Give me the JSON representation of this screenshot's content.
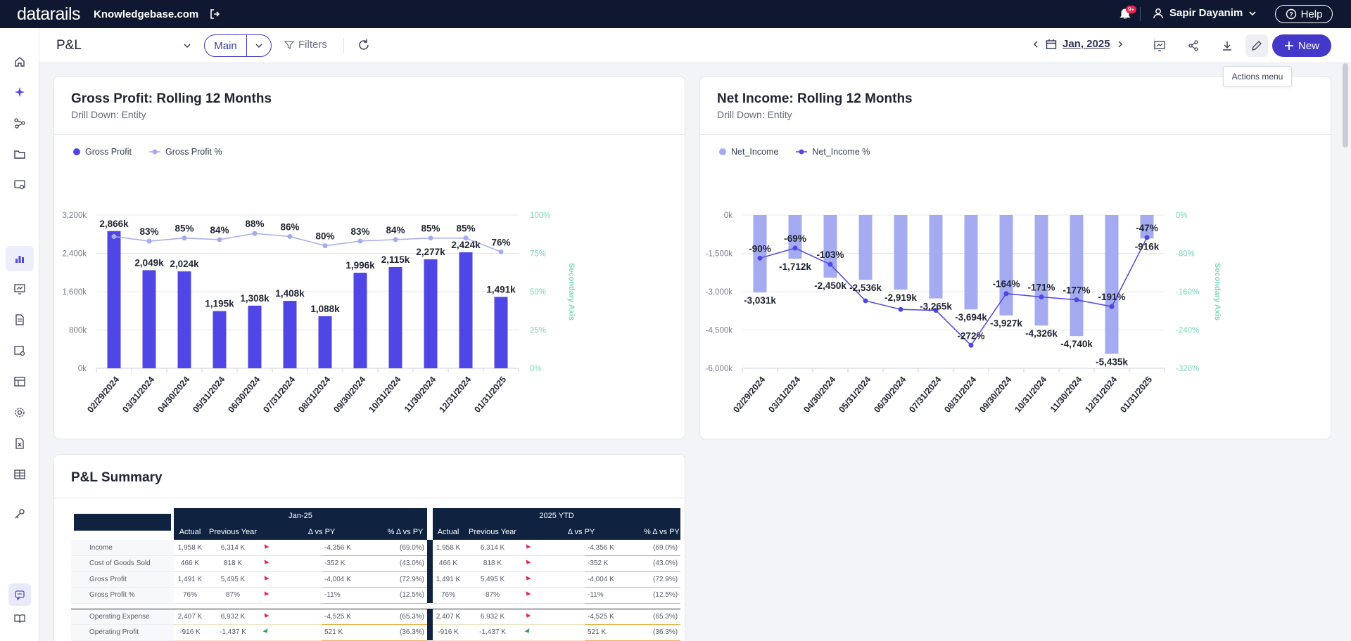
{
  "app": {
    "logo": "datarails",
    "workspace": "Knowledgebase.com",
    "notification_badge": "9+",
    "user_name": "Sapir Dayanim",
    "help_label": "Help"
  },
  "toolbar": {
    "page_title": "P&L",
    "view_label": "Main",
    "filters_label": "Filters",
    "date_label": "Jan, 2025",
    "new_label": "New",
    "tooltip": "Actions menu"
  },
  "icons": {
    "topbar": [
      "logout-icon",
      "bell-icon",
      "user-icon",
      "chevron-down-icon",
      "help-circle-icon"
    ],
    "sidebar": [
      "home-icon",
      "sparkle-icon",
      "network-icon",
      "folder-icon",
      "monitor-settings-icon",
      "bar-chart-icon",
      "presentation-icon",
      "document-icon",
      "report-settings-icon",
      "table-layout-icon",
      "gear-icon",
      "excel-file-icon",
      "grid-icon",
      "key-icon",
      "chat-icon",
      "book-icon"
    ],
    "toolbar": [
      "chevron-down-icon",
      "filter-icon",
      "refresh-icon",
      "chevron-left-icon",
      "calendar-icon",
      "chevron-right-icon",
      "presentation-icon",
      "share-icon",
      "download-icon",
      "pencil-icon",
      "plus-icon"
    ]
  },
  "colors": {
    "accent": "#4338ca",
    "bar_primary": "#4f46e5",
    "bar_light": "#a5abf0",
    "secondary_axis": "#7ad7b8",
    "header_navy": "#0f2340"
  },
  "gross_profit_card": {
    "title": "Gross Profit: Rolling 12 Months",
    "subtitle": "Drill Down: Entity",
    "legend": [
      "Gross Profit",
      "Gross Profit %"
    ],
    "secondary_axis_title": "Secondary Axis"
  },
  "net_income_card": {
    "title": "Net Income: Rolling 12 Months",
    "subtitle": "Drill Down: Entity",
    "legend": [
      "Net_Income",
      "Net_Income %"
    ],
    "secondary_axis_title": "Secondary Axis"
  },
  "chart_data": [
    {
      "type": "bar",
      "categories": [
        "02/29/2024",
        "03/31/2024",
        "04/30/2024",
        "05/31/2024",
        "06/30/2024",
        "07/31/2024",
        "08/31/2024",
        "09/30/2024",
        "10/31/2024",
        "11/30/2024",
        "12/31/2024",
        "01/31/2025"
      ],
      "series": [
        {
          "name": "Gross Profit",
          "type": "bar",
          "values": [
            2866,
            2049,
            2024,
            1195,
            1308,
            1408,
            1088,
            1996,
            2115,
            2277,
            2424,
            1491
          ],
          "labels": [
            "2,866k",
            "2,049k",
            "2,024k",
            "1,195k",
            "1,308k",
            "1,408k",
            "1,088k",
            "1,996k",
            "2,115k",
            "2,277k",
            "2,424k",
            "1,491k"
          ]
        },
        {
          "name": "Gross Profit %",
          "type": "line",
          "axis": "secondary",
          "values": [
            86,
            83,
            85,
            84,
            88,
            86,
            80,
            83,
            84,
            85,
            85,
            76
          ],
          "labels": [
            "",
            "83%",
            "85%",
            "84%",
            "88%",
            "86%",
            "80%",
            "83%",
            "84%",
            "85%",
            "85%",
            "76%"
          ]
        }
      ],
      "ylim": [
        0,
        3200
      ],
      "yticks": [
        "0k",
        "800k",
        "1,600k",
        "2,400k",
        "3,200k"
      ],
      "y2lim": [
        0,
        100
      ],
      "y2ticks": [
        "0%",
        "25%",
        "50%",
        "75%",
        "100%"
      ],
      "y2label": "Secondary Axis",
      "legend_position": "top-left"
    },
    {
      "type": "bar",
      "categories": [
        "02/29/2024",
        "03/31/2024",
        "04/30/2024",
        "05/31/2024",
        "06/30/2024",
        "07/31/2024",
        "08/31/2024",
        "09/30/2024",
        "10/31/2024",
        "11/30/2024",
        "12/31/2024",
        "01/31/2025"
      ],
      "series": [
        {
          "name": "Net_Income",
          "type": "bar",
          "values": [
            -3031,
            -1712,
            -2450,
            -2536,
            -2919,
            -3265,
            -3694,
            -3927,
            -4326,
            -4740,
            -5435,
            -916
          ],
          "labels": [
            "-3,031k",
            "-1,712k",
            "-2,450k",
            "-2,536k",
            "-2,919k",
            "-3,265k",
            "-3,694k",
            "-3,927k",
            "-4,326k",
            "-4,740k",
            "-5,435k",
            "-916k"
          ]
        },
        {
          "name": "Net_Income %",
          "type": "line",
          "axis": "secondary",
          "values": [
            -90,
            -69,
            -103,
            -179,
            -197,
            -199,
            -272,
            -164,
            -171,
            -177,
            -191,
            -47
          ],
          "labels": [
            "-90%",
            "-69%",
            "-103%",
            "",
            "",
            "",
            "-272%",
            "-164%",
            "-171%",
            "-177%",
            "-191%",
            "-47%"
          ]
        }
      ],
      "ylim": [
        -6000,
        0
      ],
      "yticks": [
        "0k",
        "-1,500k",
        "-3,000k",
        "-4,500k",
        "-6,000k"
      ],
      "y2lim": [
        -320,
        0
      ],
      "y2ticks": [
        "0%",
        "-80%",
        "-160%",
        "-240%",
        "-320%"
      ],
      "y2label": "Secondary Axis",
      "legend_position": "top-left"
    }
  ],
  "pl_summary": {
    "title": "P&L Summary",
    "period1": "Jan-25",
    "period2": "2025 YTD",
    "columns": [
      "Actual",
      "Previous Year",
      "Δ vs PY",
      "% Δ vs PY"
    ],
    "rows": [
      {
        "label": "Income",
        "actual": "1,958 K",
        "py": "6,314 K",
        "delta": "-4,356 K",
        "pct": "(69.0%)",
        "dir": "down"
      },
      {
        "label": "Cost of Goods Sold",
        "actual": "466 K",
        "py": "818 K",
        "delta": "-352 K",
        "pct": "(43.0%)",
        "dir": "down"
      },
      {
        "label": "Gross Profit",
        "actual": "1,491 K",
        "py": "5,495 K",
        "delta": "-4,004 K",
        "pct": "(72.9%)",
        "dir": "down"
      },
      {
        "label": "Gross Profit %",
        "actual": "76%",
        "py": "87%",
        "delta": "-11%",
        "pct": "(12.5%)",
        "dir": "down"
      },
      {
        "label": "Operating Expense",
        "actual": "2,407 K",
        "py": "6,932 K",
        "delta": "-4,525 K",
        "pct": "(65.3%)",
        "dir": "down"
      },
      {
        "label": "Operating Profit",
        "actual": "-916 K",
        "py": "-1,437 K",
        "delta": "521 K",
        "pct": "(36.3%)",
        "dir": "up"
      }
    ]
  }
}
